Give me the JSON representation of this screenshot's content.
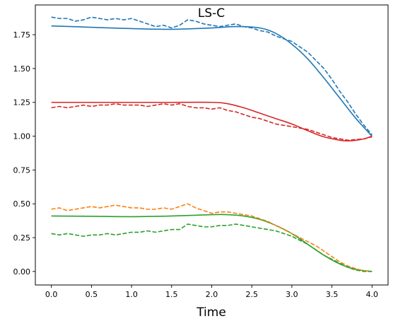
{
  "chart_data": {
    "type": "line",
    "title": "LS-C",
    "xlabel": "Time",
    "ylabel": "",
    "xlim": [
      -0.2,
      4.2
    ],
    "ylim": [
      -0.1,
      1.97
    ],
    "xticks": [
      0.0,
      0.5,
      1.0,
      1.5,
      2.0,
      2.5,
      3.0,
      3.5,
      4.0
    ],
    "xtick_labels": [
      "0.0",
      "0.5",
      "1.0",
      "1.5",
      "2.0",
      "2.5",
      "3.0",
      "3.5",
      "4.0"
    ],
    "yticks": [
      0.0,
      0.25,
      0.5,
      0.75,
      1.0,
      1.25,
      1.5,
      1.75
    ],
    "ytick_labels": [
      "0.00",
      "0.25",
      "0.50",
      "0.75",
      "1.00",
      "1.25",
      "1.50",
      "1.75"
    ],
    "grid": false,
    "legend": false,
    "series": [
      {
        "color": "#1f77b4",
        "style": "solid",
        "x": [
          0.0,
          0.5,
          1.0,
          1.5,
          2.0,
          2.3,
          2.6,
          2.8,
          3.0,
          3.2,
          3.4,
          3.6,
          3.8,
          4.0
        ],
        "y": [
          1.815,
          1.805,
          1.795,
          1.79,
          1.8,
          1.81,
          1.8,
          1.76,
          1.68,
          1.57,
          1.43,
          1.28,
          1.13,
          1.0
        ]
      },
      {
        "color": "#1f77b4",
        "style": "dashed",
        "x": [
          0.0,
          0.1,
          0.2,
          0.3,
          0.4,
          0.5,
          0.6,
          0.7,
          0.8,
          0.9,
          1.0,
          1.1,
          1.2,
          1.3,
          1.4,
          1.5,
          1.6,
          1.7,
          1.8,
          1.9,
          2.0,
          2.1,
          2.2,
          2.3,
          2.4,
          2.5,
          2.6,
          2.7,
          2.8,
          2.9,
          3.0,
          3.1,
          3.2,
          3.3,
          3.4,
          3.5,
          3.6,
          3.7,
          3.8,
          3.9,
          4.0
        ],
        "y": [
          1.88,
          1.87,
          1.87,
          1.85,
          1.86,
          1.88,
          1.87,
          1.86,
          1.87,
          1.86,
          1.87,
          1.85,
          1.83,
          1.81,
          1.82,
          1.8,
          1.82,
          1.86,
          1.85,
          1.83,
          1.82,
          1.81,
          1.82,
          1.83,
          1.81,
          1.8,
          1.78,
          1.77,
          1.74,
          1.72,
          1.7,
          1.66,
          1.62,
          1.56,
          1.5,
          1.42,
          1.33,
          1.25,
          1.16,
          1.08,
          1.01
        ]
      },
      {
        "color": "#d62728",
        "style": "solid",
        "x": [
          0.0,
          0.5,
          1.0,
          1.5,
          2.0,
          2.2,
          2.4,
          2.6,
          2.8,
          3.0,
          3.2,
          3.4,
          3.6,
          3.7,
          3.8,
          3.9,
          4.0
        ],
        "y": [
          1.25,
          1.25,
          1.25,
          1.25,
          1.25,
          1.24,
          1.21,
          1.17,
          1.13,
          1.09,
          1.04,
          0.995,
          0.97,
          0.965,
          0.97,
          0.98,
          1.0
        ]
      },
      {
        "color": "#d62728",
        "style": "dashed",
        "x": [
          0.0,
          0.1,
          0.2,
          0.3,
          0.4,
          0.5,
          0.6,
          0.7,
          0.8,
          0.9,
          1.0,
          1.1,
          1.2,
          1.3,
          1.4,
          1.5,
          1.6,
          1.7,
          1.8,
          1.9,
          2.0,
          2.1,
          2.2,
          2.3,
          2.4,
          2.5,
          2.6,
          2.7,
          2.8,
          2.9,
          3.0,
          3.1,
          3.2,
          3.3,
          3.4,
          3.5,
          3.6,
          3.7,
          3.8,
          3.9,
          4.0
        ],
        "y": [
          1.21,
          1.22,
          1.21,
          1.22,
          1.23,
          1.22,
          1.23,
          1.23,
          1.24,
          1.23,
          1.23,
          1.23,
          1.22,
          1.23,
          1.24,
          1.23,
          1.24,
          1.22,
          1.21,
          1.21,
          1.2,
          1.21,
          1.19,
          1.18,
          1.16,
          1.14,
          1.13,
          1.11,
          1.09,
          1.08,
          1.07,
          1.06,
          1.05,
          1.03,
          1.01,
          0.99,
          0.98,
          0.97,
          0.975,
          0.98,
          0.995
        ]
      },
      {
        "color": "#2ca02c",
        "style": "solid",
        "x": [
          0.0,
          0.5,
          1.0,
          1.5,
          2.0,
          2.2,
          2.4,
          2.6,
          2.8,
          3.0,
          3.2,
          3.4,
          3.6,
          3.8,
          4.0
        ],
        "y": [
          0.41,
          0.408,
          0.405,
          0.41,
          0.42,
          0.42,
          0.41,
          0.385,
          0.34,
          0.28,
          0.2,
          0.12,
          0.055,
          0.015,
          0.0
        ]
      },
      {
        "color": "#ff7f0e",
        "style": "dashed",
        "x": [
          0.0,
          0.1,
          0.2,
          0.3,
          0.4,
          0.5,
          0.6,
          0.7,
          0.8,
          0.9,
          1.0,
          1.1,
          1.2,
          1.3,
          1.4,
          1.5,
          1.6,
          1.7,
          1.8,
          1.9,
          2.0,
          2.1,
          2.2,
          2.3,
          2.4,
          2.5,
          2.6,
          2.7,
          2.8,
          2.9,
          3.0,
          3.1,
          3.2,
          3.3,
          3.4,
          3.5,
          3.6,
          3.7,
          3.8,
          3.9,
          4.0
        ],
        "y": [
          0.46,
          0.47,
          0.45,
          0.46,
          0.47,
          0.48,
          0.47,
          0.48,
          0.49,
          0.48,
          0.47,
          0.47,
          0.46,
          0.46,
          0.47,
          0.46,
          0.48,
          0.5,
          0.47,
          0.45,
          0.43,
          0.44,
          0.44,
          0.43,
          0.42,
          0.41,
          0.39,
          0.37,
          0.34,
          0.31,
          0.28,
          0.25,
          0.22,
          0.19,
          0.15,
          0.11,
          0.07,
          0.04,
          0.02,
          0.005,
          0.0
        ]
      },
      {
        "color": "#2ca02c",
        "style": "dashed",
        "x": [
          0.0,
          0.1,
          0.2,
          0.3,
          0.4,
          0.5,
          0.6,
          0.7,
          0.8,
          0.9,
          1.0,
          1.1,
          1.2,
          1.3,
          1.4,
          1.5,
          1.6,
          1.7,
          1.8,
          1.9,
          2.0,
          2.1,
          2.2,
          2.3,
          2.4,
          2.5,
          2.6,
          2.7,
          2.8,
          2.9,
          3.0,
          3.1,
          3.2,
          3.3,
          3.4,
          3.5,
          3.6,
          3.7,
          3.8,
          3.9,
          4.0
        ],
        "y": [
          0.28,
          0.27,
          0.28,
          0.27,
          0.26,
          0.27,
          0.27,
          0.28,
          0.27,
          0.28,
          0.29,
          0.29,
          0.3,
          0.29,
          0.3,
          0.31,
          0.31,
          0.35,
          0.34,
          0.33,
          0.33,
          0.34,
          0.34,
          0.35,
          0.34,
          0.33,
          0.32,
          0.31,
          0.3,
          0.28,
          0.26,
          0.23,
          0.2,
          0.16,
          0.12,
          0.09,
          0.06,
          0.03,
          0.01,
          0.0,
          0.0
        ]
      }
    ]
  }
}
